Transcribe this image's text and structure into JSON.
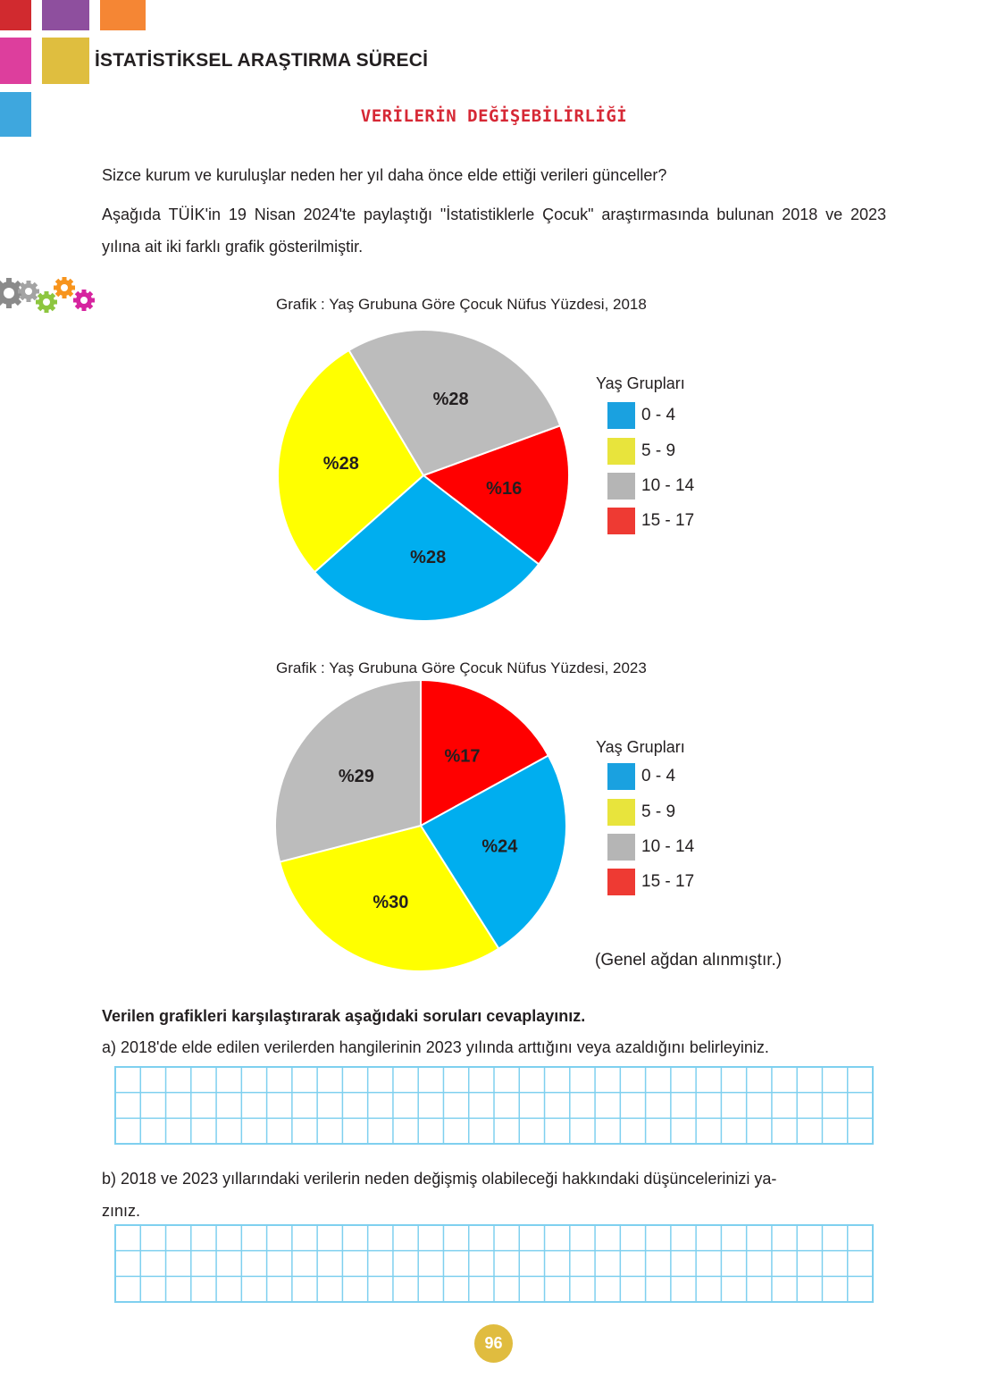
{
  "header": {
    "title": "İSTATİSTİKSEL ARAŞTIRMA SÜRECİ"
  },
  "section": {
    "title": "VERİLERİN DEĞİŞEBİLİRLİĞİ"
  },
  "intro": {
    "line1": "Sizce kurum ve kuruluşlar neden her yıl daha önce elde ettiği verileri günceller?",
    "line2": "Aşağıda TÜİK'in 19 Nisan 2024'te paylaştığı \"İstatistiklerle Çocuk\" araştırmasında bulunan 2018 ve 2023 yılına ait iki farklı grafik gösterilmiştir."
  },
  "colors": {
    "slice_blue": "#00aeef",
    "slice_yellow": "#ffff00",
    "slice_gray": "#bcbcbc",
    "slice_red": "#ff0000",
    "legend_blue": "#1aa1e0",
    "legend_yellow": "#e8e43c",
    "legend_gray": "#b5b5b5",
    "legend_red": "#ee3a33",
    "section_title": "#d62835",
    "grid_line": "#7fd0ef",
    "page_badge": "#e0bc3f"
  },
  "chart_data": [
    {
      "type": "pie",
      "title": "Grafik : Yaş Grubuna Göre Çocuk Nüfus Yüzdesi, 2018",
      "legend_title": "Yaş Grupları",
      "legend_position": "right",
      "categories": [
        "0 - 4",
        "5 - 9",
        "10 - 14",
        "15 - 17"
      ],
      "values": [
        28,
        28,
        28,
        16
      ],
      "labels": [
        "%28",
        "%28",
        "%28",
        "%16"
      ],
      "colors": [
        "#00aeef",
        "#ffff00",
        "#bcbcbc",
        "#ff0000"
      ]
    },
    {
      "type": "pie",
      "title": "Grafik : Yaş Grubuna Göre Çocuk Nüfus Yüzdesi, 2023",
      "legend_title": "Yaş Grupları",
      "legend_position": "right",
      "categories": [
        "0 - 4",
        "5 - 9",
        "10 - 14",
        "15 - 17"
      ],
      "values": [
        24,
        30,
        29,
        17
      ],
      "labels": [
        "%24",
        "%30",
        "%29",
        "%17"
      ],
      "colors": [
        "#00aeef",
        "#ffff00",
        "#bcbcbc",
        "#ff0000"
      ]
    }
  ],
  "source_note": "(Genel ağdan alınmıştır.)",
  "questions": {
    "heading": "Verilen grafikleri karşılaştırarak aşağıdaki soruları cevaplayınız.",
    "a": "a) 2018'de elde edilen verilerden hangilerinin 2023 yılında arttığını veya azaldığını belirleyiniz.",
    "b_line1": "b) 2018 ve 2023 yıllarındaki verilerin neden değişmiş olabileceği hakkındaki düşüncelerinizi ya-",
    "b_line2": "zınız."
  },
  "page_number": "96"
}
